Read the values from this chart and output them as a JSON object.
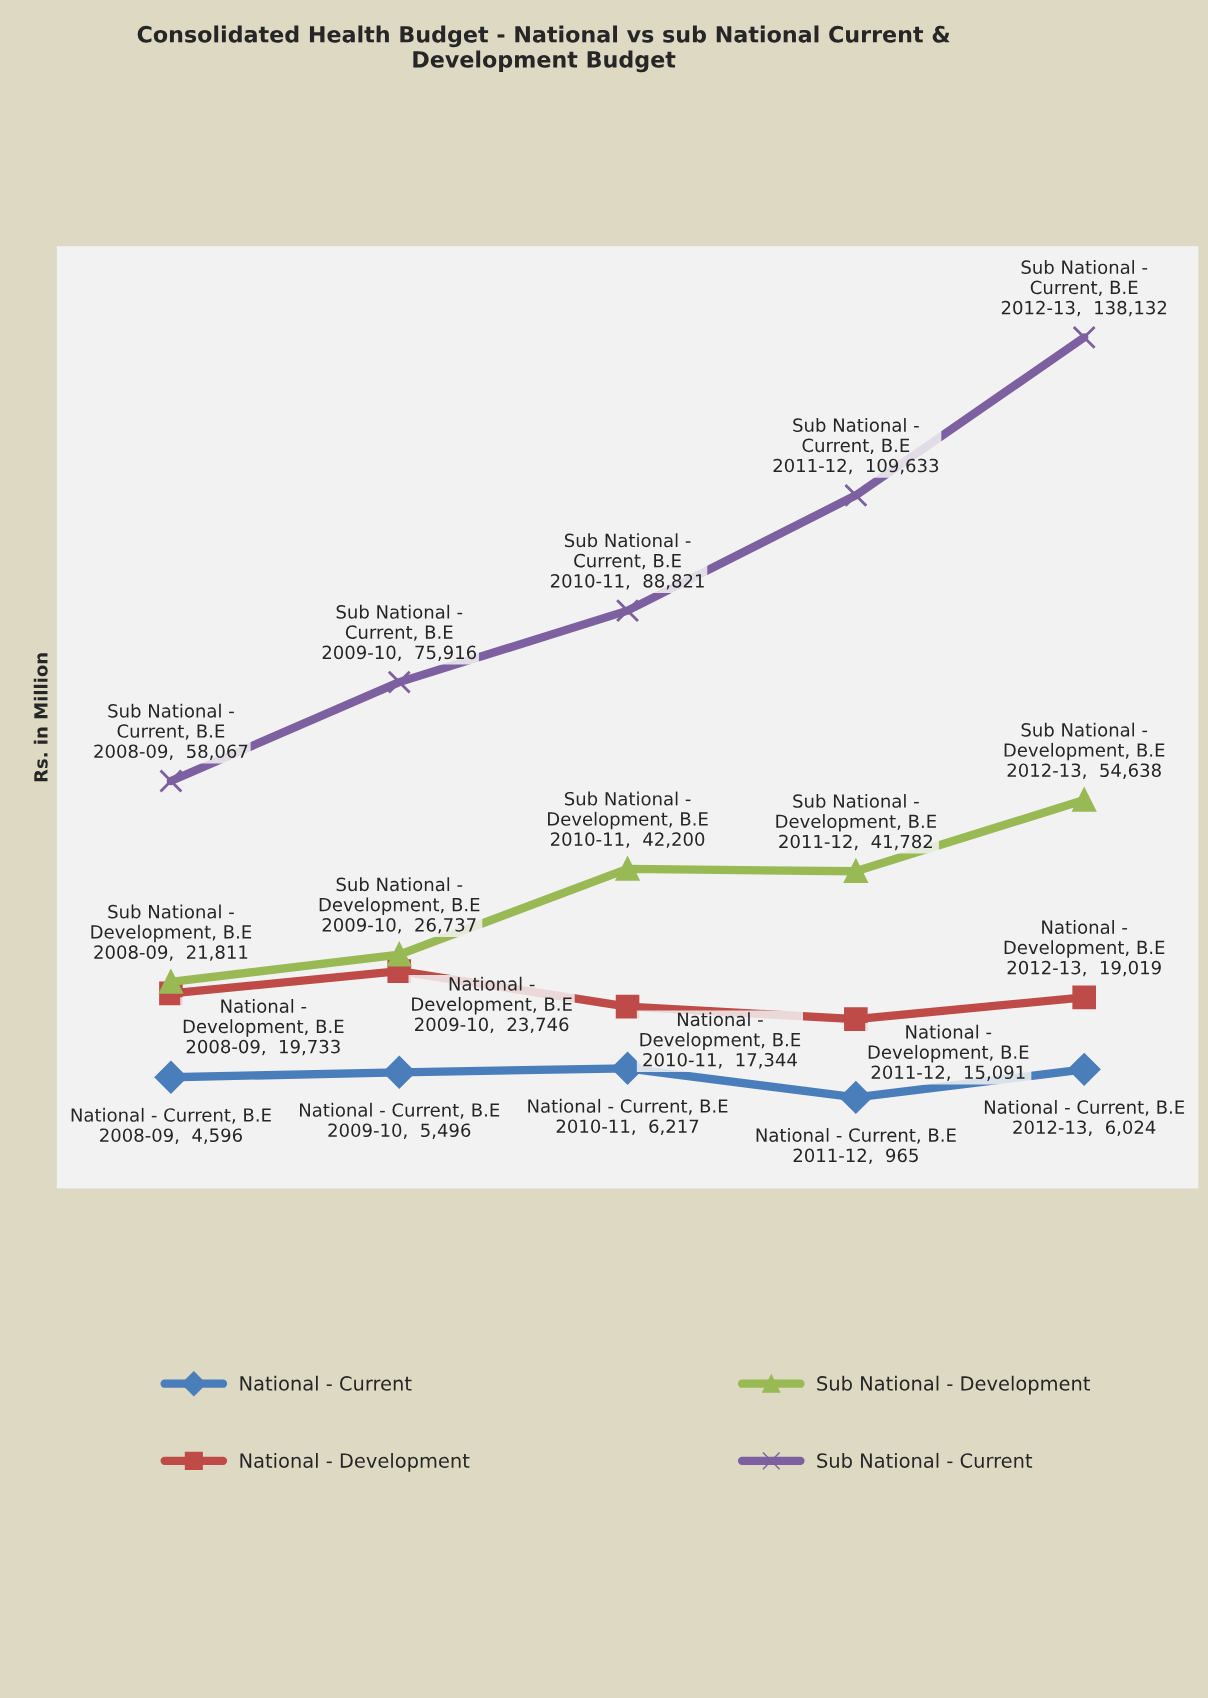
{
  "chart_data": {
    "type": "line",
    "title": "Consolidated Health Budget - National vs sub National Current &\nDevelopment Budget",
    "ylabel": "Rs. in Million",
    "categories": [
      null,
      null,
      null,
      null,
      null
    ],
    "tick_labels": false,
    "grid": false,
    "legend": "bottom",
    "line_style": "solid",
    "series": [
      {
        "name": "National - Current",
        "color": "#4a7ebb",
        "marker": "diamond",
        "values": [
          4596,
          5496,
          6217,
          965,
          6024
        ],
        "value_labels": [
          "National - Current, B.E\n2008-09,  4,596",
          "National - Current, B.E\n2009-10,  5,496",
          "National - Current, B.E\n2010-11,  6,217",
          "National - Current, B.E\n2011-12,  965",
          "National - Current, B.E\n2012-13,  6,024"
        ]
      },
      {
        "name": "National - Development",
        "color": "#be4b48",
        "marker": "square",
        "values": [
          19733,
          23746,
          17344,
          15091,
          19019
        ],
        "value_labels": [
          "National -\nDevelopment, B.E\n2008-09,  19,733",
          "National -\nDevelopment, B.E\n2009-10,  23,746",
          "National -\nDevelopment, B.E\n2010-11,  17,344",
          "National -\nDevelopment, B.E\n2011-12,  15,091",
          "National -\nDevelopment, B.E\n2012-13,  19,019"
        ]
      },
      {
        "name": "Sub National - Development",
        "color": "#98b954",
        "marker": "triangle",
        "values": [
          21811,
          26737,
          42200,
          41782,
          54638
        ],
        "value_labels": [
          "Sub National -\nDevelopment, B.E\n2008-09,  21,811",
          "Sub National -\nDevelopment, B.E\n2009-10,  26,737",
          "Sub National -\nDevelopment, B.E\n2010-11,  42,200",
          "Sub National -\nDevelopment, B.E\n2011-12,  41,782",
          "Sub National -\nDevelopment, B.E\n2012-13,  54,638"
        ]
      },
      {
        "name": "Sub National - Current",
        "color": "#7d60a0",
        "marker": "cross",
        "values": [
          58067,
          75916,
          88821,
          109633,
          138132
        ],
        "value_labels": [
          "Sub National -\nCurrent, B.E\n2008-09,  58,067",
          "Sub National -\nCurrent, B.E\n2009-10,  75,916",
          "Sub National -\nCurrent, B.E\n2010-11,  88,821",
          "Sub National -\nCurrent, B.E\n2011-12,  109,633",
          "Sub National -\nCurrent, B.E\n2012-13,  138,132"
        ]
      }
    ]
  }
}
